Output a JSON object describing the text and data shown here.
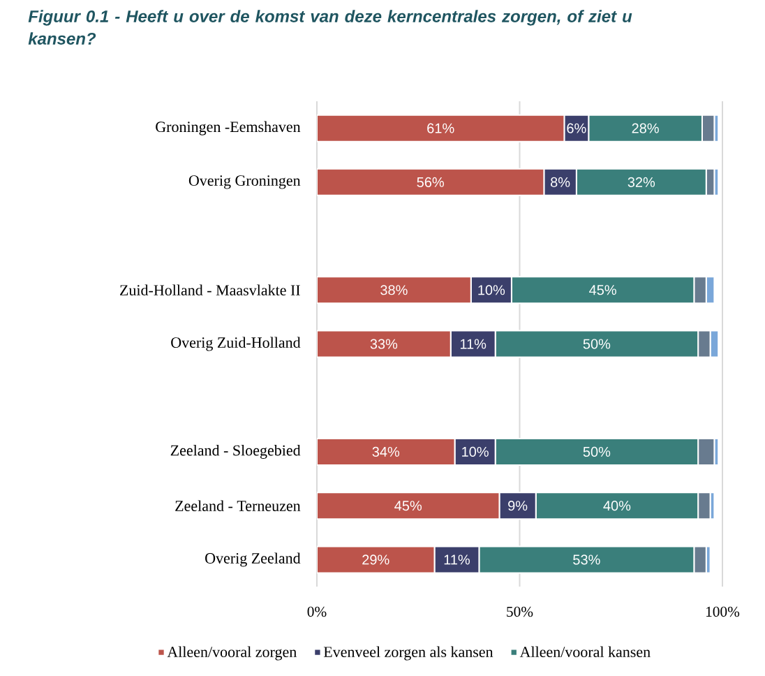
{
  "chart_data": {
    "type": "bar",
    "orientation": "horizontal",
    "stacked": true,
    "title": "*Figuur 0.1 - Heeft u over de komst van deze kerncentrales zorgen, of ziet u kansen?*",
    "categories": [
      "Groningen -Eemshaven",
      "Overig Groningen",
      null,
      "Zuid-Holland - Maasvlakte II",
      "Overig Zuid-Holland",
      null,
      "Zeeland - Sloegebied",
      "Zeeland - Terneuzen",
      "Overig Zeeland"
    ],
    "series": [
      {
        "name": "Alleen/vooral zorgen",
        "color": "#bc544b",
        "values": [
          61,
          56,
          null,
          38,
          33,
          null,
          34,
          45,
          29
        ],
        "value_labels": [
          "61%",
          "56%",
          null,
          "38%",
          "33%",
          null,
          "34%",
          "45%",
          "29%"
        ]
      },
      {
        "name": "Evenveel zorgen als kansen",
        "color": "#3b3f6b",
        "values": [
          6,
          8,
          null,
          10,
          11,
          null,
          10,
          9,
          11
        ],
        "value_labels": [
          "6%",
          "8%",
          null,
          "10%",
          "11%",
          null,
          "10%",
          "9%",
          "11%"
        ]
      },
      {
        "name": "Alleen/vooral kansen",
        "color": "#3a7f7b",
        "values": [
          28,
          32,
          null,
          45,
          50,
          null,
          50,
          40,
          53
        ],
        "value_labels": [
          "28%",
          "32%",
          null,
          "45%",
          "50%",
          null,
          "50%",
          "40%",
          "53%"
        ]
      },
      {
        "color": "#687b8f",
        "values": [
          3,
          2,
          null,
          3,
          3,
          null,
          4,
          3,
          3
        ]
      },
      {
        "color": "#7aa7d9",
        "values": [
          1,
          1,
          null,
          2,
          2,
          null,
          1,
          1,
          1
        ]
      }
    ],
    "xlim": [
      0,
      100
    ],
    "xticks": [
      {
        "value": 0,
        "label": "0%"
      },
      {
        "value": 50,
        "label": "50%"
      },
      {
        "value": 100,
        "label": "100%"
      }
    ],
    "grid": "x",
    "legend": "bottom"
  }
}
